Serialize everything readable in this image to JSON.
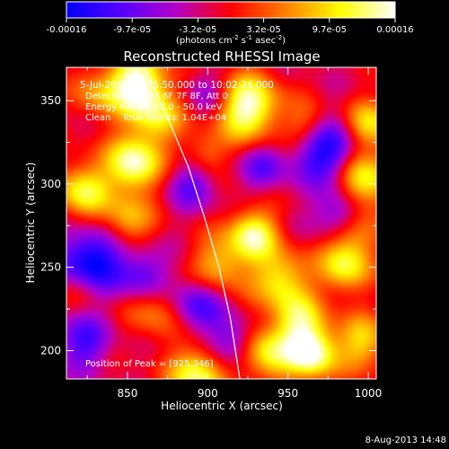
{
  "chart_data": {
    "type": "heatmap",
    "title": "Reconstructed RHESSI Image",
    "xlabel": "Heliocentric X (arcsec)",
    "ylabel": "Heliocentric Y (arcsec)",
    "xlim": [
      812,
      1005
    ],
    "ylim": [
      183,
      370
    ],
    "x_ticks": [
      850,
      900,
      950,
      1000
    ],
    "y_ticks": [
      200,
      250,
      300,
      350
    ],
    "colorbar": {
      "range": [
        -0.00016,
        0.00016
      ],
      "tick_labels": [
        "-0.00016",
        "-9.7e-05",
        "-3.2e-05",
        "3.2e-05",
        "9.7e-05",
        "0.00016"
      ],
      "unit_text": "(photons cm",
      "unit_sup1": "-2",
      "unit_mid": " s",
      "unit_sup2": "-1",
      "unit_end": " asec",
      "unit_sup3": "-2",
      "unit_close": ")",
      "colormap": [
        "#0000ff",
        "#5500ff",
        "#b400c8",
        "#ff0000",
        "#ff8000",
        "#ffff00",
        "#ffffff"
      ]
    },
    "annotations": {
      "time_range": "5-Jul-2011 09:56:50.000 to 10:02:24.000",
      "detectors": "Detectors: 4F 5F 6F 7F 8F, Att 0",
      "energy": "Energy Range: 25.0 - 50.0 keV",
      "clean": "Clean    Total counts: 1.04E+04",
      "peak": "Position of Peak = [925,346]"
    },
    "limb_curve": [
      [
        861,
        370
      ],
      [
        875,
        340
      ],
      [
        888,
        310
      ],
      [
        898,
        280
      ],
      [
        907,
        250
      ],
      [
        914,
        220
      ],
      [
        920,
        183
      ]
    ],
    "blobs": [
      {
        "x": 856,
        "y": 361,
        "amp": 1.0,
        "r": 13
      },
      {
        "x": 925,
        "y": 346,
        "amp": 1.0,
        "r": 14
      },
      {
        "x": 868,
        "y": 340,
        "amp": 0.6,
        "r": 12
      },
      {
        "x": 831,
        "y": 354,
        "amp": 0.4,
        "r": 11
      },
      {
        "x": 822,
        "y": 296,
        "amp": 0.75,
        "r": 12
      },
      {
        "x": 854,
        "y": 312,
        "amp": 0.95,
        "r": 12
      },
      {
        "x": 850,
        "y": 278,
        "amp": 0.55,
        "r": 11
      },
      {
        "x": 868,
        "y": 225,
        "amp": 0.45,
        "r": 13
      },
      {
        "x": 907,
        "y": 251,
        "amp": 0.6,
        "r": 12
      },
      {
        "x": 928,
        "y": 270,
        "amp": 0.85,
        "r": 11
      },
      {
        "x": 945,
        "y": 243,
        "amp": 0.7,
        "r": 12
      },
      {
        "x": 957,
        "y": 218,
        "amp": 0.65,
        "r": 12
      },
      {
        "x": 937,
        "y": 198,
        "amp": 0.7,
        "r": 12
      },
      {
        "x": 965,
        "y": 198,
        "amp": 0.95,
        "r": 11
      },
      {
        "x": 996,
        "y": 302,
        "amp": 0.9,
        "r": 12
      },
      {
        "x": 1001,
        "y": 335,
        "amp": 0.7,
        "r": 11
      },
      {
        "x": 991,
        "y": 270,
        "amp": 0.5,
        "r": 11
      },
      {
        "x": 985,
        "y": 250,
        "amp": 0.7,
        "r": 11
      },
      {
        "x": 997,
        "y": 205,
        "amp": 0.6,
        "r": 12
      },
      {
        "x": 963,
        "y": 335,
        "amp": 0.45,
        "r": 10
      },
      {
        "x": 893,
        "y": 185,
        "amp": 0.85,
        "r": 12
      },
      {
        "x": 898,
        "y": 318,
        "amp": 0.4,
        "r": 9
      },
      {
        "x": 822,
        "y": 237,
        "amp": 0.3,
        "r": 10
      }
    ],
    "troughs": [
      {
        "x": 827,
        "y": 253,
        "amp": -0.9,
        "r": 14
      },
      {
        "x": 860,
        "y": 245,
        "amp": -0.55,
        "r": 11
      },
      {
        "x": 893,
        "y": 228,
        "amp": -0.6,
        "r": 12
      },
      {
        "x": 975,
        "y": 320,
        "amp": -0.85,
        "r": 14
      },
      {
        "x": 890,
        "y": 300,
        "amp": -0.45,
        "r": 11
      },
      {
        "x": 982,
        "y": 283,
        "amp": -0.6,
        "r": 11
      },
      {
        "x": 915,
        "y": 205,
        "amp": -0.5,
        "r": 10
      },
      {
        "x": 822,
        "y": 205,
        "amp": -0.55,
        "r": 12
      },
      {
        "x": 935,
        "y": 310,
        "amp": -0.45,
        "r": 10
      },
      {
        "x": 900,
        "y": 355,
        "amp": -0.35,
        "r": 10
      }
    ]
  },
  "footer": {
    "date": "8-Aug-2013 14:48"
  }
}
